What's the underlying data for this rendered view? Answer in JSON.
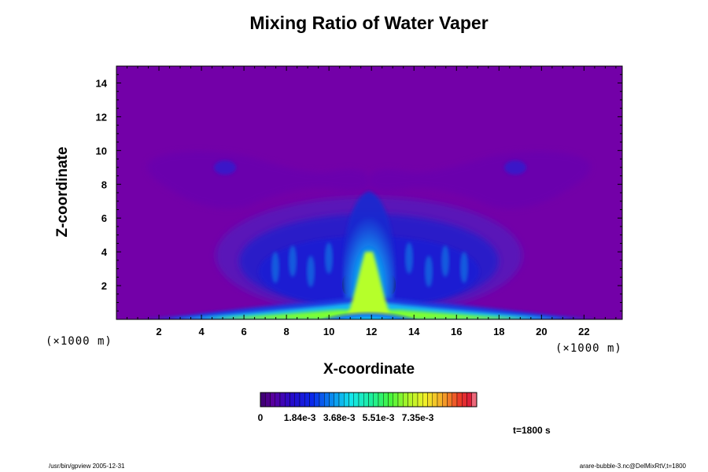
{
  "chart_data": {
    "type": "heatmap",
    "title": "Mixing Ratio of Water Vaper",
    "xlabel": "X-coordinate",
    "ylabel": "Z-coordinate",
    "x_unit": "(×1000 m)",
    "y_unit": "(×1000 m)",
    "xlim": [
      0,
      23.8
    ],
    "ylim": [
      0,
      15
    ],
    "x_ticks": [
      2,
      4,
      6,
      8,
      10,
      12,
      14,
      16,
      18,
      20,
      22
    ],
    "y_ticks": [
      2,
      4,
      6,
      8,
      10,
      12,
      14
    ],
    "colorbar": {
      "min": 0,
      "max": 0.0101,
      "tick_labels": [
        "0",
        "1.84e-3",
        "3.68e-3",
        "5.51e-3",
        "7.35e-3"
      ]
    },
    "background_color": "#7300a8",
    "time_label": "t=1800 s"
  },
  "footer": {
    "left": "/usr/bin/gpview 2005-12-31",
    "right": "arare-bubble-3.nc@DelMixRtV,t=1800"
  }
}
